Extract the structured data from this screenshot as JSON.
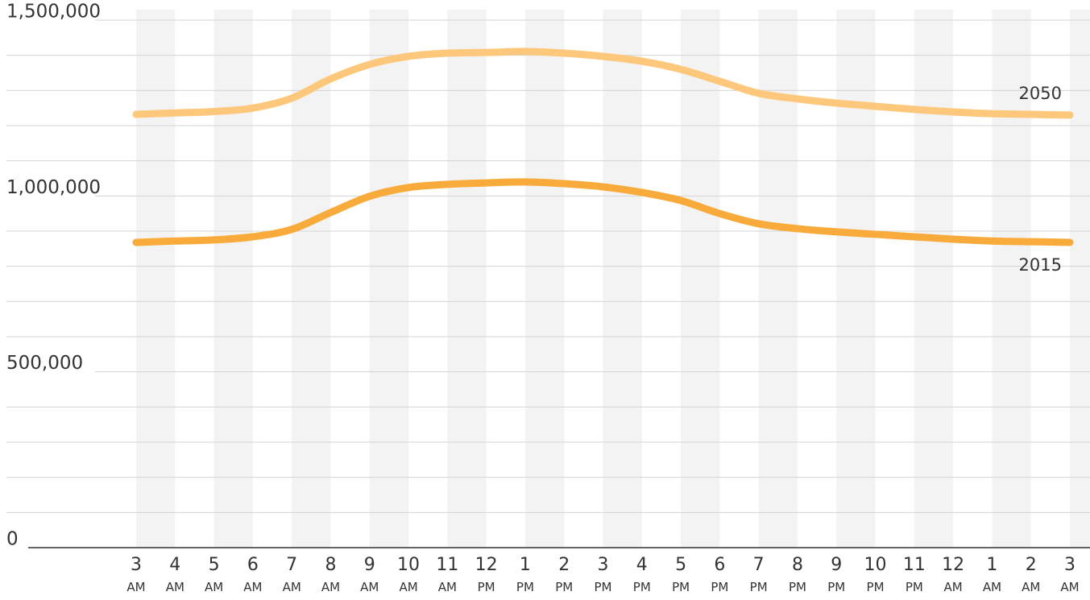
{
  "chart_data": {
    "type": "line",
    "categories": [
      "3",
      "4",
      "5",
      "6",
      "7",
      "8",
      "9",
      "10",
      "11",
      "12",
      "1",
      "2",
      "3",
      "4",
      "5",
      "6",
      "7",
      "8",
      "9",
      "10",
      "11",
      "12",
      "1",
      "2",
      "3"
    ],
    "category_periods": [
      "AM",
      "AM",
      "AM",
      "AM",
      "AM",
      "AM",
      "AM",
      "AM",
      "AM",
      "PM",
      "PM",
      "PM",
      "PM",
      "PM",
      "PM",
      "PM",
      "PM",
      "PM",
      "PM",
      "PM",
      "PM",
      "AM",
      "AM",
      "AM",
      "AM"
    ],
    "series": [
      {
        "name": "2050",
        "color": "#fdc87c",
        "values": [
          1232000,
          1236000,
          1240000,
          1250000,
          1278000,
          1333000,
          1374000,
          1397000,
          1406000,
          1408000,
          1411000,
          1406000,
          1397000,
          1383000,
          1360000,
          1326000,
          1292000,
          1276000,
          1264000,
          1255000,
          1246000,
          1239000,
          1234000,
          1232000,
          1230000
        ]
      },
      {
        "name": "2015",
        "color": "#f8ab3a",
        "values": [
          868000,
          872000,
          875000,
          884000,
          905000,
          953000,
          999000,
          1024000,
          1033000,
          1037000,
          1040000,
          1035000,
          1026000,
          1010000,
          987000,
          950000,
          921000,
          907000,
          898000,
          891000,
          884000,
          877000,
          872000,
          870000,
          868000
        ]
      }
    ],
    "ylim": [
      0,
      1500000
    ],
    "yticks": [
      0,
      {
        "value": 500000,
        "label": "500,000"
      },
      {
        "value": 1000000,
        "label": "1,000,000"
      },
      {
        "value": 1500000,
        "label": "1,500,000"
      }
    ],
    "minor_yticks": [
      100000,
      200000,
      300000,
      400000,
      600000,
      700000,
      800000,
      900000,
      1100000,
      1200000,
      1300000,
      1400000
    ],
    "grid": true
  }
}
